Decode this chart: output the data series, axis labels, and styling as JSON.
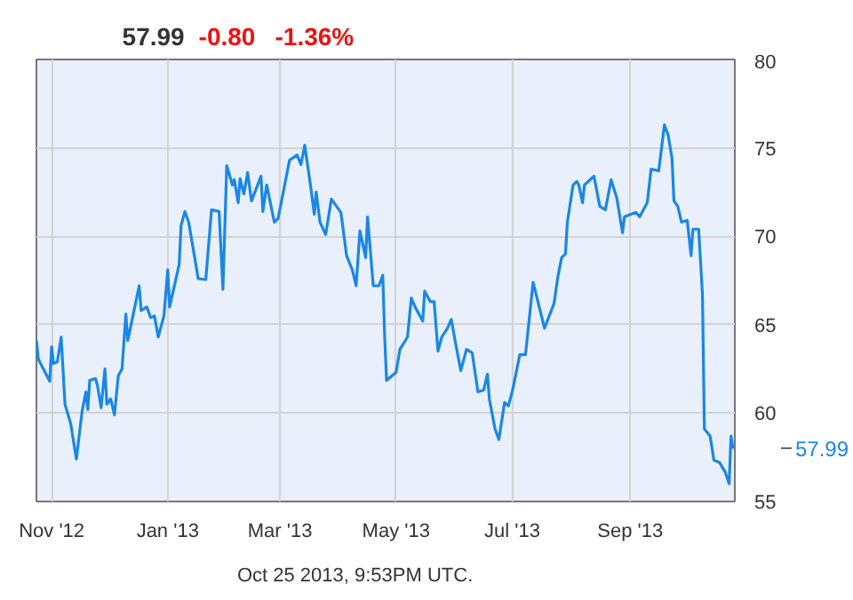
{
  "chart_data": {
    "type": "line",
    "x": [
      "2012-10-24",
      "2012-10-25",
      "2012-10-31",
      "2012-11-01",
      "2012-11-02",
      "2012-11-04",
      "2012-11-06",
      "2012-11-08",
      "2012-11-11",
      "2012-11-14",
      "2012-11-17",
      "2012-11-19",
      "2012-11-20",
      "2012-11-21",
      "2012-11-24",
      "2012-11-25",
      "2012-11-27",
      "2012-11-29",
      "2012-11-30",
      "2012-12-02",
      "2012-12-04",
      "2012-12-06",
      "2012-12-08",
      "2012-12-10",
      "2012-12-11",
      "2012-12-14",
      "2012-12-17",
      "2012-12-18",
      "2012-12-21",
      "2012-12-23",
      "2012-12-25",
      "2012-12-27",
      "2012-12-30",
      "2013-01-01",
      "2013-01-02",
      "2013-01-07",
      "2013-01-08",
      "2013-01-10",
      "2013-01-12",
      "2013-01-15",
      "2013-01-17",
      "2013-01-21",
      "2013-01-24",
      "2013-01-28",
      "2013-01-30",
      "2013-02-01",
      "2013-02-04",
      "2013-02-05",
      "2013-02-07",
      "2013-02-08",
      "2013-02-10",
      "2013-02-12",
      "2013-02-14",
      "2013-02-19",
      "2013-02-20",
      "2013-02-22",
      "2013-02-26",
      "2013-02-28",
      "2013-03-06",
      "2013-03-10",
      "2013-03-12",
      "2013-03-14",
      "2013-03-17",
      "2013-03-19",
      "2013-03-20",
      "2013-03-22",
      "2013-03-25",
      "2013-03-28",
      "2013-04-02",
      "2013-04-05",
      "2013-04-08",
      "2013-04-10",
      "2013-04-12",
      "2013-04-15",
      "2013-04-16",
      "2013-04-19",
      "2013-04-22",
      "2013-04-24",
      "2013-04-25",
      "2013-04-26",
      "2013-05-01",
      "2013-05-03",
      "2013-05-07",
      "2013-05-09",
      "2013-05-11",
      "2013-05-15",
      "2013-05-16",
      "2013-05-19",
      "2013-05-21",
      "2013-05-23",
      "2013-05-25",
      "2013-05-28",
      "2013-05-30",
      "2013-06-01",
      "2013-06-04",
      "2013-06-07",
      "2013-06-10",
      "2013-06-13",
      "2013-06-16",
      "2013-06-18",
      "2013-06-19",
      "2013-06-22",
      "2013-06-24",
      "2013-06-27",
      "2013-06-29",
      "2013-07-01",
      "2013-07-02",
      "2013-07-05",
      "2013-07-08",
      "2013-07-12",
      "2013-07-18",
      "2013-07-23",
      "2013-07-25",
      "2013-07-27",
      "2013-07-29",
      "2013-07-30",
      "2013-08-02",
      "2013-08-04",
      "2013-08-05",
      "2013-08-07",
      "2013-08-08",
      "2013-08-13",
      "2013-08-16",
      "2013-08-19",
      "2013-08-22",
      "2013-08-25",
      "2013-08-28",
      "2013-08-29",
      "2013-09-04",
      "2013-09-06",
      "2013-09-10",
      "2013-09-12",
      "2013-09-16",
      "2013-09-19",
      "2013-09-21",
      "2013-09-23",
      "2013-09-24",
      "2013-09-26",
      "2013-09-28",
      "2013-10-01",
      "2013-10-03",
      "2013-10-04",
      "2013-10-07",
      "2013-10-09",
      "2013-10-10",
      "2013-10-13",
      "2013-10-15",
      "2013-10-18",
      "2013-10-21",
      "2013-10-23",
      "2013-10-24",
      "2013-10-25"
    ],
    "series": [
      {
        "color": "#1a87e6",
        "values": [
          64.1,
          63.05,
          61.8,
          63.75,
          62.8,
          62.9,
          64.3,
          60.5,
          59.4,
          57.4,
          60.1,
          61.2,
          60.2,
          61.85,
          61.95,
          61.6,
          60.3,
          62.5,
          60.5,
          60.8,
          59.9,
          62.1,
          62.5,
          65.6,
          64.1,
          65.65,
          67.2,
          65.8,
          66.0,
          65.4,
          65.5,
          64.3,
          65.5,
          68.1,
          66.0,
          68.4,
          70.6,
          71.4,
          70.8,
          68.9,
          67.6,
          67.55,
          71.5,
          71.4,
          67.0,
          74.0,
          72.9,
          73.2,
          71.9,
          73.25,
          72.4,
          73.6,
          72.0,
          73.4,
          71.4,
          72.9,
          70.8,
          71.0,
          74.3,
          74.6,
          74.05,
          75.15,
          72.9,
          71.25,
          72.5,
          70.8,
          70.1,
          72.1,
          71.35,
          68.9,
          68.1,
          67.2,
          70.3,
          68.8,
          71.1,
          67.2,
          67.2,
          67.8,
          64.3,
          61.85,
          62.3,
          63.6,
          64.3,
          66.5,
          66.0,
          65.2,
          66.9,
          66.3,
          66.3,
          63.5,
          64.3,
          64.8,
          65.3,
          64.1,
          62.4,
          63.6,
          63.4,
          61.2,
          61.3,
          62.2,
          60.8,
          59.1,
          58.5,
          60.6,
          60.4,
          61.2,
          61.7,
          63.3,
          63.3,
          67.4,
          64.8,
          66.2,
          67.7,
          68.8,
          69.0,
          70.8,
          72.9,
          73.1,
          72.9,
          71.9,
          72.9,
          73.4,
          71.7,
          71.5,
          73.2,
          72.15,
          70.2,
          71.1,
          71.35,
          71.1,
          71.9,
          73.8,
          73.7,
          76.3,
          75.7,
          74.4,
          72.0,
          71.7,
          70.8,
          70.9,
          68.9,
          70.4,
          70.4,
          66.7,
          59.1,
          58.7,
          57.35,
          57.2,
          56.65,
          56.0,
          58.7,
          57.99
        ]
      }
    ],
    "xlim": [
      "2012-10-24",
      "2013-10-26"
    ],
    "xticks": [
      {
        "value": "2012-11-01",
        "label": "Nov '12"
      },
      {
        "value": "2013-01-01",
        "label": "Jan '13"
      },
      {
        "value": "2013-03-01",
        "label": "Mar '13"
      },
      {
        "value": "2013-05-01",
        "label": "May '13"
      },
      {
        "value": "2013-07-01",
        "label": "Jul '13"
      },
      {
        "value": "2013-09-01",
        "label": "Sep '13"
      }
    ],
    "ylim": [
      55,
      80
    ],
    "yticks": [
      55,
      60,
      65,
      70,
      75,
      80
    ],
    "grid": true,
    "marker": "none",
    "line_style": "solid",
    "annotations": [
      "57.99",
      "-0.80",
      "-1.36%",
      "Oct 25 2013, 9:53PM UTC.",
      {
        "text": "57.99",
        "x": "2013-10-25",
        "y": 57.99
      }
    ]
  }
}
